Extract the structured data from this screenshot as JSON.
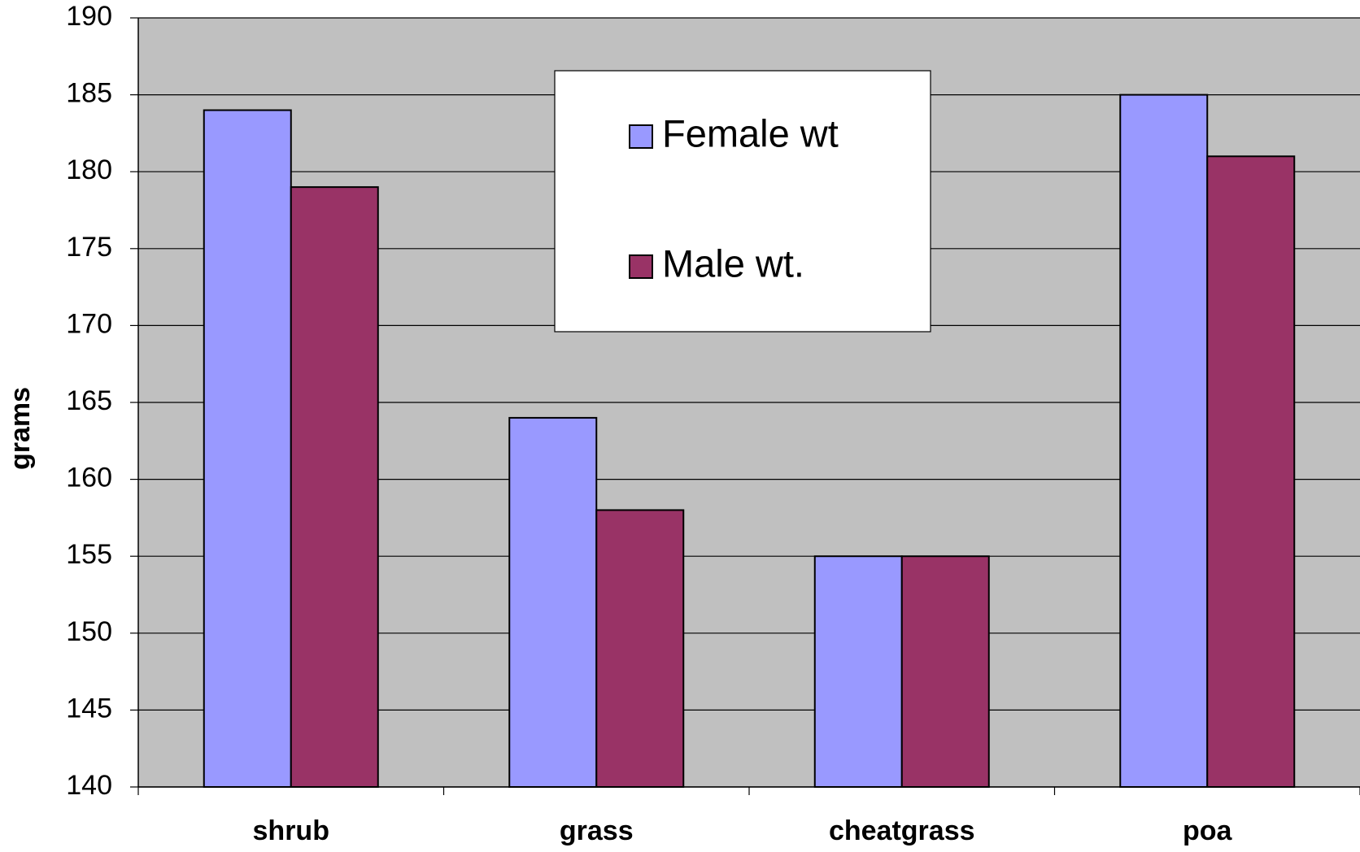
{
  "chart_data": {
    "type": "bar",
    "y_label": "grams",
    "categories": [
      "shrub",
      "grass",
      "cheatgrass",
      "poa"
    ],
    "series": [
      {
        "name": "Female wt",
        "color": "#9999ff",
        "values": [
          184,
          164,
          155,
          185
        ]
      },
      {
        "name": "Male wt.",
        "color": "#993366",
        "values": [
          179,
          158,
          155,
          181
        ]
      }
    ],
    "ylim": [
      140,
      190
    ],
    "yticks": [
      140,
      145,
      150,
      155,
      160,
      165,
      170,
      175,
      180,
      185,
      190
    ],
    "grid": true,
    "background": "#c0c0c0"
  }
}
